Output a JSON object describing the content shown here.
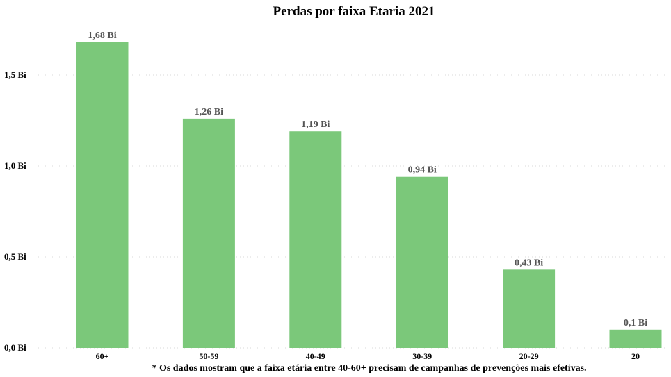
{
  "chart_data": {
    "type": "bar",
    "title": "Perdas por faixa Etaria 2021",
    "categories": [
      "60+",
      "50-59",
      "40-49",
      "30-39",
      "20-29",
      "20"
    ],
    "values": [
      1.68,
      1.26,
      1.19,
      0.94,
      0.43,
      0.1
    ],
    "data_labels": [
      "1,68 Bi",
      "1,26 Bi",
      "1,19 Bi",
      "0,94 Bi",
      "0,43 Bi",
      "0,1 Bi"
    ],
    "yticks": [
      0.0,
      0.5,
      1.0,
      1.5
    ],
    "ytick_labels": [
      "0,0 Bi",
      "0,5 Bi",
      "1,0 Bi",
      "1,5 Bi"
    ],
    "ylim": [
      0,
      1.8
    ],
    "xlabel": "",
    "ylabel": "",
    "grid": true,
    "legend": "none",
    "bar_color": "#7bc87a",
    "footnote": "* Os dados mostram que a faixa etária entre 40-60+ precisam de campanhas de prevenções mais efetivas."
  }
}
